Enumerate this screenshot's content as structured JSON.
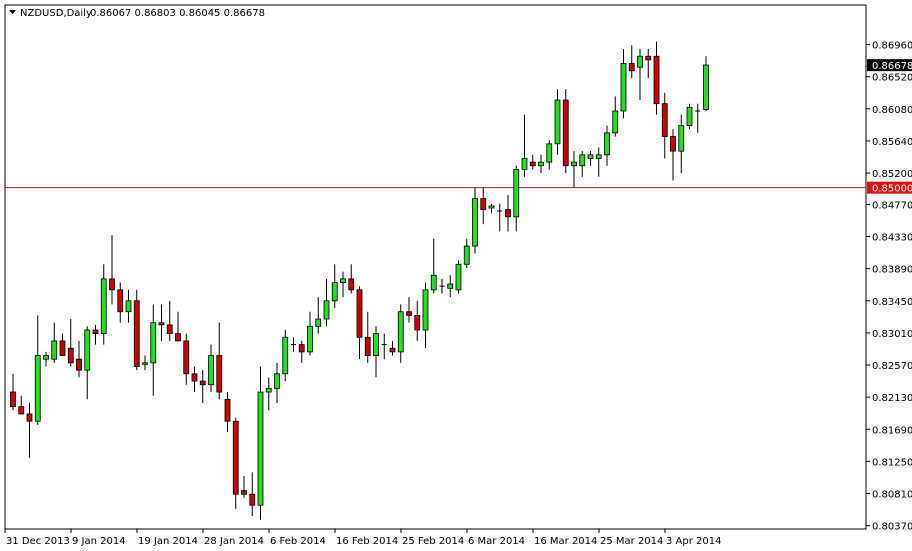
{
  "header": {
    "symbol": "NZDUSD,Daily",
    "ohlc": "0.86067 0.86803 0.86045 0.86678"
  },
  "colors": {
    "bull": "#22dd22",
    "bear": "#cc0000",
    "outline": "#000000",
    "level_line": "#dd1111",
    "current_price_bg": "#000000",
    "level_bg": "#dd1111"
  },
  "chart_data": {
    "type": "candlestick",
    "title": "",
    "ylim": [
      0.80351,
      0.87146
    ],
    "y_ticks": [
      "0.86960",
      "0.86520",
      "0.86080",
      "0.85640",
      "0.85200",
      "0.84770",
      "0.84330",
      "0.83890",
      "0.83450",
      "0.83010",
      "0.82570",
      "0.82130",
      "0.81690",
      "0.81250",
      "0.80810",
      "0.80370"
    ],
    "x_ticks": [
      "31 Dec 2013",
      "9 Jan 2014",
      "19 Jan 2014",
      "28 Jan 2014",
      "6 Feb 2014",
      "16 Feb 2014",
      "25 Feb 2014",
      "6 Mar 2014",
      "16 Mar 2014",
      "25 Mar 2014",
      "3 Apr 2014"
    ],
    "x_tick_index": [
      0,
      8,
      16,
      24,
      32,
      40,
      48,
      56,
      64,
      72,
      80
    ],
    "horizontal_level": {
      "value": 0.85,
      "label": "0.85000"
    },
    "current_price": {
      "value": 0.86678,
      "label": "0.86678"
    },
    "candles": [
      {
        "o": 0.822,
        "h": 0.8245,
        "l": 0.8195,
        "c": 0.82
      },
      {
        "o": 0.82,
        "h": 0.8215,
        "l": 0.819,
        "c": 0.819
      },
      {
        "o": 0.819,
        "h": 0.8205,
        "l": 0.813,
        "c": 0.818
      },
      {
        "o": 0.818,
        "h": 0.8325,
        "l": 0.8175,
        "c": 0.827
      },
      {
        "o": 0.8265,
        "h": 0.8275,
        "l": 0.8255,
        "c": 0.827
      },
      {
        "o": 0.8265,
        "h": 0.8315,
        "l": 0.826,
        "c": 0.829
      },
      {
        "o": 0.829,
        "h": 0.83,
        "l": 0.827,
        "c": 0.827
      },
      {
        "o": 0.828,
        "h": 0.832,
        "l": 0.8255,
        "c": 0.826
      },
      {
        "o": 0.8265,
        "h": 0.829,
        "l": 0.824,
        "c": 0.825
      },
      {
        "o": 0.825,
        "h": 0.831,
        "l": 0.821,
        "c": 0.8305
      },
      {
        "o": 0.8305,
        "h": 0.8312,
        "l": 0.8285,
        "c": 0.83
      },
      {
        "o": 0.83,
        "h": 0.8395,
        "l": 0.8285,
        "c": 0.8375
      },
      {
        "o": 0.8375,
        "h": 0.8435,
        "l": 0.834,
        "c": 0.836
      },
      {
        "o": 0.836,
        "h": 0.837,
        "l": 0.8315,
        "c": 0.833
      },
      {
        "o": 0.833,
        "h": 0.836,
        "l": 0.8315,
        "c": 0.8345
      },
      {
        "o": 0.8345,
        "h": 0.836,
        "l": 0.825,
        "c": 0.8255
      },
      {
        "o": 0.8258,
        "h": 0.827,
        "l": 0.825,
        "c": 0.826
      },
      {
        "o": 0.826,
        "h": 0.834,
        "l": 0.8215,
        "c": 0.8315
      },
      {
        "o": 0.8315,
        "h": 0.834,
        "l": 0.829,
        "c": 0.8312
      },
      {
        "o": 0.8312,
        "h": 0.8345,
        "l": 0.829,
        "c": 0.83
      },
      {
        "o": 0.83,
        "h": 0.833,
        "l": 0.829,
        "c": 0.829
      },
      {
        "o": 0.829,
        "h": 0.83,
        "l": 0.823,
        "c": 0.8245
      },
      {
        "o": 0.8245,
        "h": 0.8255,
        "l": 0.822,
        "c": 0.8235
      },
      {
        "o": 0.8235,
        "h": 0.825,
        "l": 0.8205,
        "c": 0.823
      },
      {
        "o": 0.823,
        "h": 0.8285,
        "l": 0.822,
        "c": 0.827
      },
      {
        "o": 0.827,
        "h": 0.8315,
        "l": 0.821,
        "c": 0.822
      },
      {
        "o": 0.821,
        "h": 0.822,
        "l": 0.8165,
        "c": 0.818
      },
      {
        "o": 0.818,
        "h": 0.8185,
        "l": 0.806,
        "c": 0.808
      },
      {
        "o": 0.8085,
        "h": 0.8105,
        "l": 0.8075,
        "c": 0.808
      },
      {
        "o": 0.808,
        "h": 0.811,
        "l": 0.805,
        "c": 0.8065
      },
      {
        "o": 0.8065,
        "h": 0.8255,
        "l": 0.8045,
        "c": 0.822
      },
      {
        "o": 0.822,
        "h": 0.824,
        "l": 0.8195,
        "c": 0.8225
      },
      {
        "o": 0.8225,
        "h": 0.826,
        "l": 0.8205,
        "c": 0.8245
      },
      {
        "o": 0.8245,
        "h": 0.8305,
        "l": 0.8235,
        "c": 0.8295
      },
      {
        "o": 0.8285,
        "h": 0.8295,
        "l": 0.8275,
        "c": 0.8285
      },
      {
        "o": 0.8285,
        "h": 0.829,
        "l": 0.826,
        "c": 0.8275
      },
      {
        "o": 0.8275,
        "h": 0.833,
        "l": 0.827,
        "c": 0.831
      },
      {
        "o": 0.831,
        "h": 0.835,
        "l": 0.83,
        "c": 0.832
      },
      {
        "o": 0.832,
        "h": 0.8375,
        "l": 0.831,
        "c": 0.8345
      },
      {
        "o": 0.8345,
        "h": 0.8395,
        "l": 0.8335,
        "c": 0.837
      },
      {
        "o": 0.837,
        "h": 0.8385,
        "l": 0.835,
        "c": 0.8375
      },
      {
        "o": 0.8375,
        "h": 0.8395,
        "l": 0.8355,
        "c": 0.836
      },
      {
        "o": 0.836,
        "h": 0.8365,
        "l": 0.8265,
        "c": 0.8295
      },
      {
        "o": 0.8295,
        "h": 0.833,
        "l": 0.826,
        "c": 0.827
      },
      {
        "o": 0.827,
        "h": 0.831,
        "l": 0.824,
        "c": 0.83
      },
      {
        "o": 0.8285,
        "h": 0.83,
        "l": 0.8265,
        "c": 0.8285
      },
      {
        "o": 0.828,
        "h": 0.829,
        "l": 0.827,
        "c": 0.8275
      },
      {
        "o": 0.8275,
        "h": 0.834,
        "l": 0.826,
        "c": 0.833
      },
      {
        "o": 0.833,
        "h": 0.835,
        "l": 0.8315,
        "c": 0.8325
      },
      {
        "o": 0.8325,
        "h": 0.8345,
        "l": 0.829,
        "c": 0.8305
      },
      {
        "o": 0.8305,
        "h": 0.837,
        "l": 0.828,
        "c": 0.836
      },
      {
        "o": 0.836,
        "h": 0.843,
        "l": 0.8355,
        "c": 0.838
      },
      {
        "o": 0.8365,
        "h": 0.8375,
        "l": 0.8355,
        "c": 0.8365
      },
      {
        "o": 0.8362,
        "h": 0.838,
        "l": 0.835,
        "c": 0.8368
      },
      {
        "o": 0.836,
        "h": 0.84,
        "l": 0.8355,
        "c": 0.8395
      },
      {
        "o": 0.8395,
        "h": 0.843,
        "l": 0.839,
        "c": 0.842
      },
      {
        "o": 0.842,
        "h": 0.85,
        "l": 0.841,
        "c": 0.8485
      },
      {
        "o": 0.8485,
        "h": 0.85,
        "l": 0.845,
        "c": 0.847
      },
      {
        "o": 0.8472,
        "h": 0.8478,
        "l": 0.8465,
        "c": 0.8475
      },
      {
        "o": 0.8468,
        "h": 0.8478,
        "l": 0.844,
        "c": 0.8468
      },
      {
        "o": 0.847,
        "h": 0.849,
        "l": 0.844,
        "c": 0.846
      },
      {
        "o": 0.846,
        "h": 0.853,
        "l": 0.844,
        "c": 0.8525
      },
      {
        "o": 0.8525,
        "h": 0.86,
        "l": 0.8515,
        "c": 0.854
      },
      {
        "o": 0.8535,
        "h": 0.8545,
        "l": 0.8525,
        "c": 0.853
      },
      {
        "o": 0.853,
        "h": 0.8545,
        "l": 0.852,
        "c": 0.8535
      },
      {
        "o": 0.8535,
        "h": 0.8565,
        "l": 0.8525,
        "c": 0.856
      },
      {
        "o": 0.856,
        "h": 0.8635,
        "l": 0.8545,
        "c": 0.862
      },
      {
        "o": 0.862,
        "h": 0.8635,
        "l": 0.852,
        "c": 0.853
      },
      {
        "o": 0.853,
        "h": 0.855,
        "l": 0.85,
        "c": 0.8535
      },
      {
        "o": 0.853,
        "h": 0.855,
        "l": 0.8515,
        "c": 0.8545
      },
      {
        "o": 0.854,
        "h": 0.855,
        "l": 0.853,
        "c": 0.8545
      },
      {
        "o": 0.854,
        "h": 0.8555,
        "l": 0.8515,
        "c": 0.8545
      },
      {
        "o": 0.8545,
        "h": 0.8585,
        "l": 0.853,
        "c": 0.8575
      },
      {
        "o": 0.8575,
        "h": 0.8625,
        "l": 0.857,
        "c": 0.8605
      },
      {
        "o": 0.8605,
        "h": 0.869,
        "l": 0.8595,
        "c": 0.867
      },
      {
        "o": 0.867,
        "h": 0.8695,
        "l": 0.865,
        "c": 0.866
      },
      {
        "o": 0.8665,
        "h": 0.869,
        "l": 0.862,
        "c": 0.868
      },
      {
        "o": 0.868,
        "h": 0.869,
        "l": 0.865,
        "c": 0.8675
      },
      {
        "o": 0.868,
        "h": 0.87,
        "l": 0.86,
        "c": 0.8615
      },
      {
        "o": 0.8615,
        "h": 0.863,
        "l": 0.854,
        "c": 0.857
      },
      {
        "o": 0.857,
        "h": 0.858,
        "l": 0.851,
        "c": 0.855
      },
      {
        "o": 0.855,
        "h": 0.86,
        "l": 0.852,
        "c": 0.8585
      },
      {
        "o": 0.8585,
        "h": 0.8615,
        "l": 0.858,
        "c": 0.861
      },
      {
        "o": 0.8605,
        "h": 0.8615,
        "l": 0.8575,
        "c": 0.8605
      },
      {
        "o": 0.8607,
        "h": 0.868,
        "l": 0.8605,
        "c": 0.8668
      }
    ]
  }
}
